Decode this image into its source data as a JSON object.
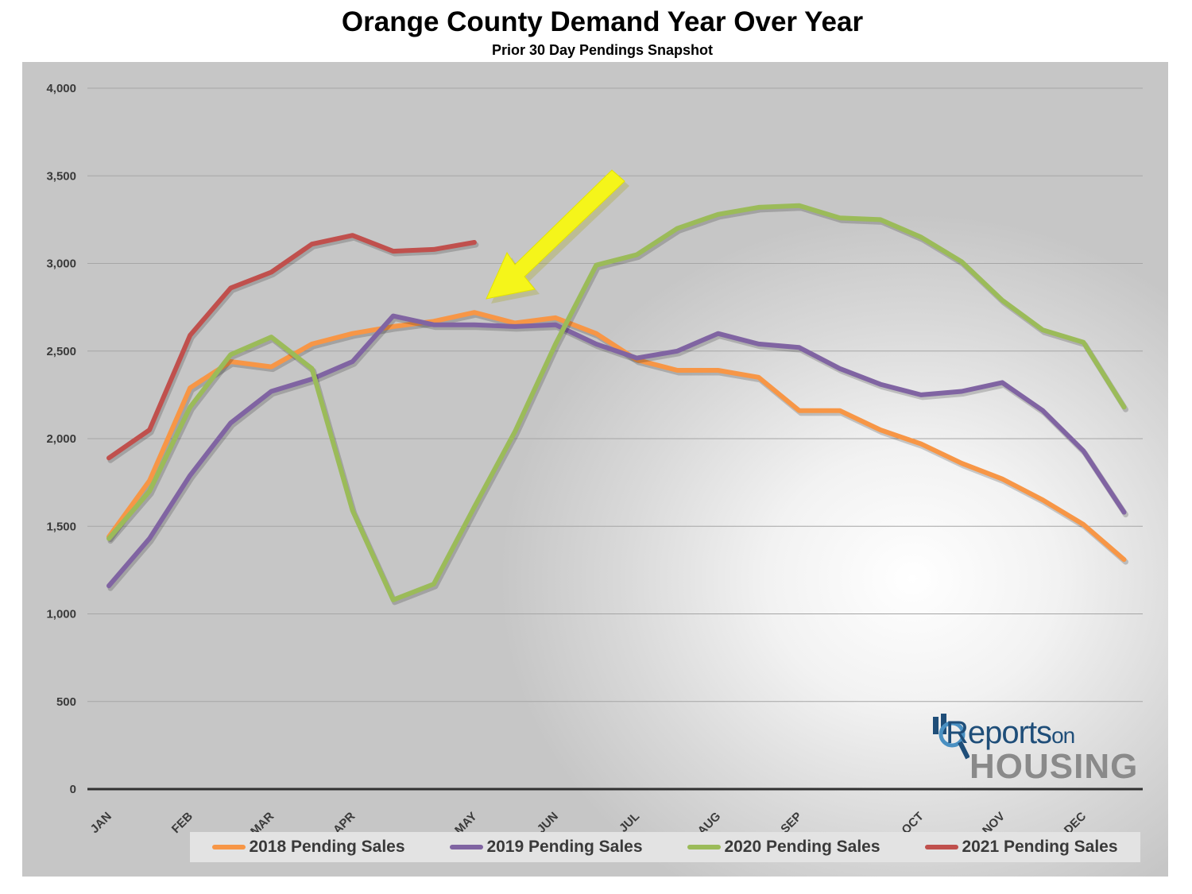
{
  "chart_data": {
    "type": "line",
    "title": "Orange County Demand Year Over Year",
    "subtitle": "Prior 30 Day Pendings Snapshot",
    "xlabel": "",
    "ylabel": "",
    "ylim": [
      0,
      4000
    ],
    "yticks": [
      "0",
      "500",
      "1,000",
      "1,500",
      "2,000",
      "2,500",
      "3,000",
      "3,500",
      "4,000"
    ],
    "ytick_values": [
      0,
      500,
      1000,
      1500,
      2000,
      2500,
      3000,
      3500,
      4000
    ],
    "month_labels": [
      {
        "label": "JAN",
        "index": 0
      },
      {
        "label": "FEB",
        "index": 2
      },
      {
        "label": "MAR",
        "index": 4
      },
      {
        "label": "APR",
        "index": 6
      },
      {
        "label": "MAY",
        "index": 9
      },
      {
        "label": "JUN",
        "index": 11
      },
      {
        "label": "JUL",
        "index": 13
      },
      {
        "label": "AUG",
        "index": 15
      },
      {
        "label": "SEP",
        "index": 17
      },
      {
        "label": "OCT",
        "index": 20
      },
      {
        "label": "NOV",
        "index": 22
      },
      {
        "label": "DEC",
        "index": 24
      }
    ],
    "point_count": 26,
    "grid": true,
    "legend_position": "bottom",
    "series": [
      {
        "name": "2018 Pending Sales",
        "color": "#f79646",
        "values": [
          1440,
          1760,
          2290,
          2440,
          2410,
          2540,
          2600,
          2640,
          2670,
          2720,
          2660,
          2690,
          2600,
          2450,
          2390,
          2390,
          2350,
          2160,
          2160,
          2050,
          1970,
          1860,
          1770,
          1650,
          1510,
          1310
        ]
      },
      {
        "name": "2019 Pending Sales",
        "color": "#8064a2",
        "values": [
          1160,
          1430,
          1790,
          2090,
          2270,
          2340,
          2440,
          2700,
          2650,
          2650,
          2640,
          2650,
          2540,
          2460,
          2500,
          2600,
          2540,
          2520,
          2400,
          2310,
          2250,
          2270,
          2320,
          2160,
          1930,
          1580
        ]
      },
      {
        "name": "2020 Pending Sales",
        "color": "#9bbb59",
        "values": [
          1430,
          1700,
          2180,
          2480,
          2580,
          2400,
          1590,
          1080,
          1170,
          1610,
          2040,
          2540,
          2990,
          3050,
          3200,
          3280,
          3320,
          3330,
          3260,
          3250,
          3150,
          3010,
          2790,
          2620,
          2550,
          2180
        ]
      },
      {
        "name": "2021 Pending Sales",
        "color": "#c0504d",
        "values": [
          1890,
          2050,
          2590,
          2860,
          2950,
          3110,
          3160,
          3070,
          3080,
          3120
        ]
      }
    ]
  },
  "logo": {
    "line1": "Reports",
    "line1_suffix": "on",
    "line2": "HOUSING"
  }
}
